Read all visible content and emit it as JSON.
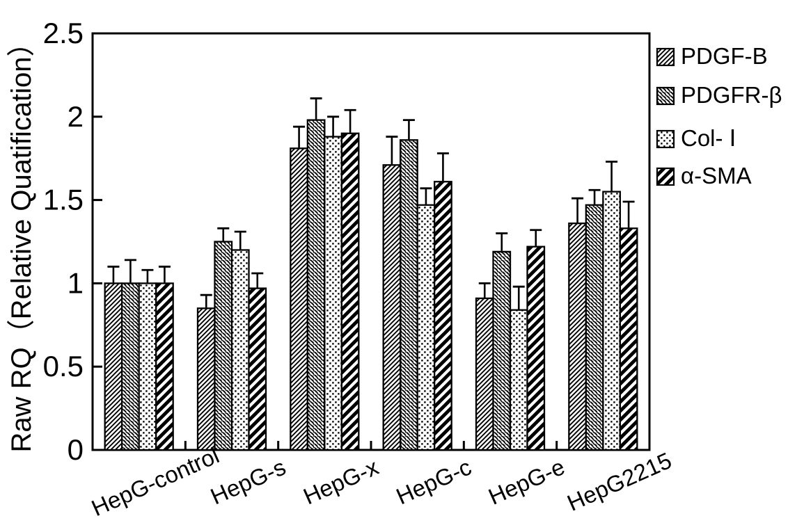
{
  "chart_data": {
    "type": "bar",
    "title": "",
    "ylabel": "Raw RQ（Relative Quatification）",
    "xlabel": "",
    "ylim": [
      0,
      2.5
    ],
    "yticks": [
      "0",
      "0.5",
      "1",
      "1.5",
      "2",
      "2.5"
    ],
    "ytick_values": [
      0,
      0.5,
      1,
      1.5,
      2,
      2.5
    ],
    "categories": [
      "HepG-control",
      "HepG-s",
      "HepG-x",
      "HepG-c",
      "HepG-e",
      "HepG2215"
    ],
    "grid": false,
    "legend_position": "right-outside",
    "error_bars": "upper-only",
    "bar_fill": "#ffffff",
    "ink_color": "#000000",
    "background_color": "#ffffff",
    "series": [
      {
        "name": "PDGF-B",
        "hatch": "diagonal-forward-thin",
        "values": [
          1.0,
          0.85,
          1.81,
          1.71,
          0.91,
          1.36
        ],
        "errors": [
          0.1,
          0.08,
          0.13,
          0.17,
          0.09,
          0.15
        ]
      },
      {
        "name": "PDGFR-β",
        "hatch": "diagonal-backward-thin",
        "values": [
          1.0,
          1.25,
          1.98,
          1.86,
          1.19,
          1.47
        ],
        "errors": [
          0.14,
          0.08,
          0.13,
          0.12,
          0.11,
          0.09
        ]
      },
      {
        "name": "Col- Ⅰ",
        "hatch": "dots",
        "values": [
          1.0,
          1.2,
          1.88,
          1.47,
          0.84,
          1.55
        ],
        "errors": [
          0.08,
          0.11,
          0.12,
          0.1,
          0.14,
          0.18
        ]
      },
      {
        "name": "α-SMA",
        "hatch": "diagonal-forward-thick",
        "values": [
          1.0,
          0.97,
          1.9,
          1.61,
          1.22,
          1.33
        ],
        "errors": [
          0.1,
          0.09,
          0.14,
          0.17,
          0.1,
          0.16
        ]
      }
    ]
  }
}
